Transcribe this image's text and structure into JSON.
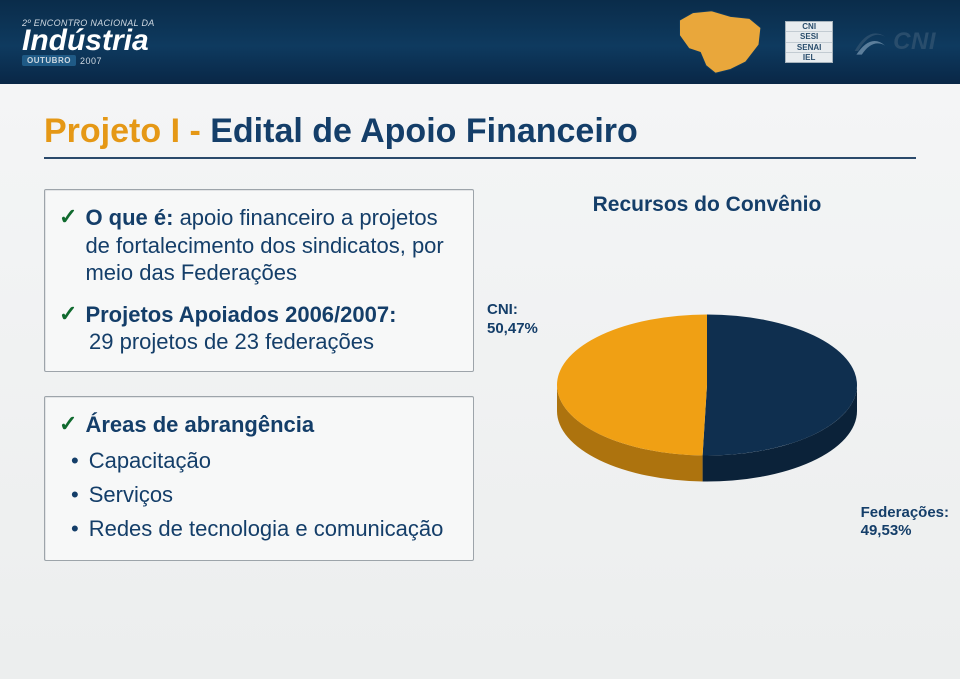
{
  "header": {
    "event_top_line": "2º ENCONTRO NACIONAL DA",
    "event_main": "Indústria",
    "event_month": "OUTUBRO",
    "event_year": "2007",
    "stacked_labels": [
      "CNI",
      "SESI",
      "SENAI",
      "IEL"
    ],
    "cni_text": "CNI",
    "map_colors": {
      "fill": "#e9a73b",
      "stroke": "#0e3a5f"
    }
  },
  "title": {
    "part_a": "Projeto I - ",
    "part_b": "Edital de Apoio Financeiro"
  },
  "boxes": {
    "box1": {
      "line1_label": "O que é:",
      "line1_rest": " apoio financeiro a projetos de fortalecimento dos sindicatos, por meio das Federações",
      "line2_label": "Projetos Apoiados 2006/2007:",
      "line2_rest": "29 projetos de 23 federações"
    },
    "box2": {
      "heading": "Áreas de abrangência",
      "items": [
        "Capacitação",
        "Serviços",
        "Redes de tecnologia e comunicação"
      ]
    }
  },
  "chart": {
    "type": "pie",
    "title": "Recursos do Convênio",
    "slices": [
      {
        "id": "cni",
        "label": "CNI:",
        "value_label": "50,47%",
        "value": 50.47,
        "color": "#0f2f4f"
      },
      {
        "id": "feds",
        "label": "Federações:",
        "value_label": "49,53%",
        "value": 49.53,
        "color": "#f0a014"
      }
    ],
    "background_color": "#ffffff",
    "depth": 26,
    "tilt": 0.47,
    "radius": 150,
    "side_shade": 0.72,
    "label_fontsize": 15,
    "title_fontsize": 21,
    "title_color": "#143e69"
  }
}
